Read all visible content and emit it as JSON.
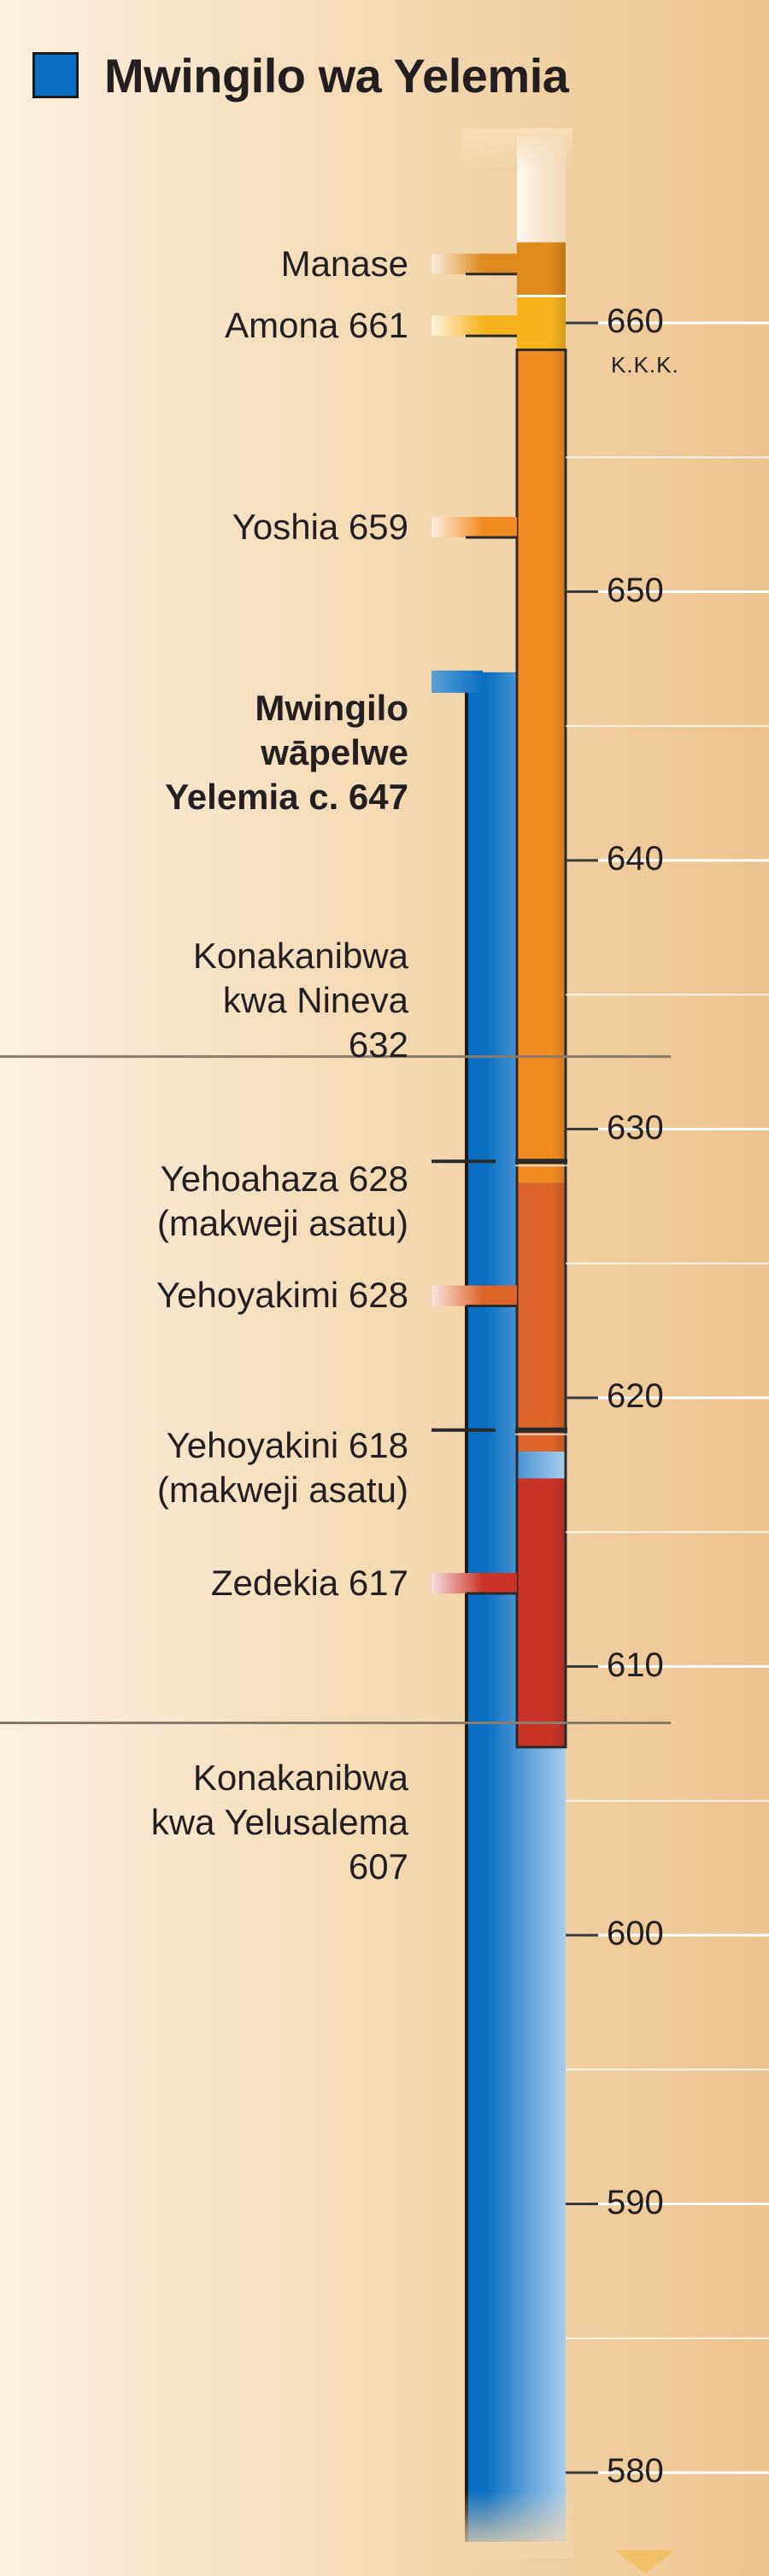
{
  "legend": {
    "title": "Mwingilo wa Yelemia",
    "swatch_color": "#0a6fc2"
  },
  "era_label": "K.K.K.",
  "axis": {
    "ticks": [
      660,
      650,
      640,
      630,
      620,
      610,
      600,
      590,
      580
    ],
    "range": [
      580,
      661
    ]
  },
  "reigns": [
    {
      "name": "Manase",
      "start": 663,
      "end": 661,
      "color": "#dd8a1e"
    },
    {
      "name": "Amona",
      "start": 661,
      "end": 659,
      "color": "#f6b31e"
    },
    {
      "name": "Yoshia",
      "start": 659,
      "end": 628,
      "color": "#f28c22"
    },
    {
      "name": "Yehoyakimi",
      "start": 628,
      "end": 618,
      "color": "#dd6429"
    },
    {
      "name": "Zedekia",
      "start": 617,
      "end": 607,
      "color": "#c93427"
    }
  ],
  "ministry": {
    "start": 647,
    "end": 580,
    "color": "#0a6fc2"
  },
  "events": [
    {
      "text": "Manase",
      "year": 662.2,
      "line": 662.2,
      "connector": "stub",
      "bold": false
    },
    {
      "text": "Amona 661",
      "year": 659.9,
      "line": 659.9,
      "connector": "stub",
      "bold": false
    },
    {
      "text": "Yoshia 659",
      "year": 652.4,
      "line": 652.4,
      "connector": "stub",
      "bold": false
    },
    {
      "text": "Mwingilo\nwāpelwe\nYelemia c. 647",
      "year": 644.0,
      "line": 647,
      "connector": "stub",
      "bold": true
    },
    {
      "text": "Konakanibwa\nkwa Nineva\n632",
      "year": 634.8,
      "line": 632.7,
      "connector": "rule",
      "bold": false
    },
    {
      "text": "Yehoahaza 628\n(makweji asatu)",
      "year": 627.3,
      "line": 628.8,
      "connector": "thin",
      "bold": false
    },
    {
      "text": "Yehoyakimi 628",
      "year": 623.8,
      "line": 623.8,
      "connector": "stub",
      "bold": false
    },
    {
      "text": "Yehoyakini 618\n(makweji asatu)",
      "year": 617.4,
      "line": 618.8,
      "connector": "thin",
      "bold": false
    },
    {
      "text": "Zedekia 617",
      "year": 613.1,
      "line": 613.1,
      "connector": "stub",
      "bold": false
    },
    {
      "text": "Konakanibwa\nkwa Yelusalema\n607",
      "year": 604.2,
      "line": 607.9,
      "connector": "rule",
      "bold": false
    }
  ]
}
